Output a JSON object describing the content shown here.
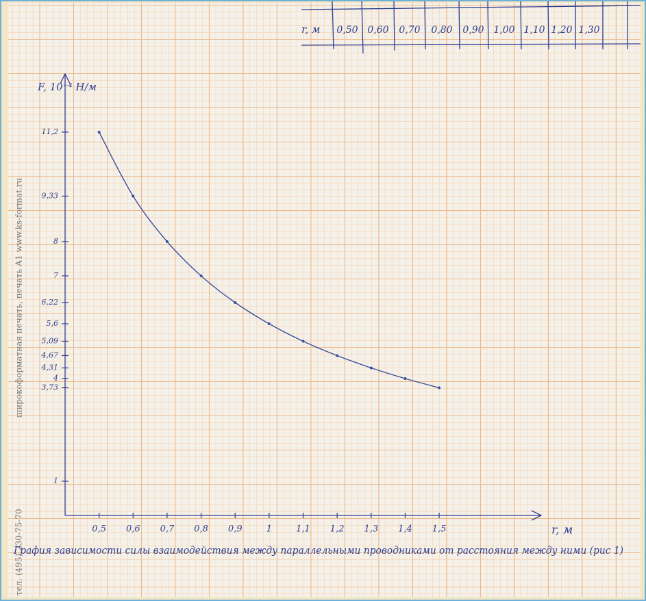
{
  "chart_data": {
    "type": "line",
    "y_label": "F, 10⁻⁴ Н/м",
    "x_label": "r, м",
    "caption": "Графия зависимости силы взаимодействия между параллельными проводниками от расстояния между ними (рис 1)",
    "x": [
      0.5,
      0.6,
      0.7,
      0.8,
      0.9,
      1.0,
      1.1,
      1.2,
      1.3,
      1.4,
      1.5
    ],
    "values": [
      11.2,
      9.33,
      8,
      7,
      6.22,
      5.6,
      5.09,
      4.67,
      4.31,
      4,
      3.73
    ],
    "color": "#3b4f9e",
    "xlim": [
      0.4,
      1.8
    ],
    "ylim": [
      0,
      12.6
    ],
    "xticks": [
      {
        "value": 0.5,
        "label": "0,5"
      },
      {
        "value": 0.6,
        "label": "0,6"
      },
      {
        "value": 0.7,
        "label": "0,7"
      },
      {
        "value": 0.8,
        "label": "0,8"
      },
      {
        "value": 0.9,
        "label": "0,9"
      },
      1,
      {
        "value": 1.1,
        "label": "1,1"
      },
      {
        "value": 1.2,
        "label": "1,2"
      },
      {
        "value": 1.3,
        "label": "1,3"
      },
      {
        "value": 1.4,
        "label": "1,4"
      },
      {
        "value": 1.5,
        "label": "1,5"
      }
    ],
    "yticks": [
      1,
      {
        "value": 3.73,
        "label": "3,73"
      },
      4,
      {
        "value": 4.31,
        "label": "4,31"
      },
      {
        "value": 4.67,
        "label": "4,67"
      },
      {
        "value": 5.09,
        "label": "5,09"
      },
      {
        "value": 5.6,
        "label": "5,6"
      },
      {
        "value": 6.22,
        "label": "6,22"
      },
      7,
      8,
      {
        "value": 9.33,
        "label": "9,33"
      },
      {
        "value": 11.2,
        "label": "11,2"
      }
    ]
  },
  "table": {
    "header": "r, м",
    "cells": [
      "0,50",
      "0,60",
      "0,70",
      "0,80",
      "0,90",
      "1,00",
      "1,10",
      "1,20",
      "1,30"
    ]
  },
  "margin_text": [
    "широкоформатная печать, печать А1   www.ks-format.ru",
    "тел. (495) 230-75-70"
  ]
}
